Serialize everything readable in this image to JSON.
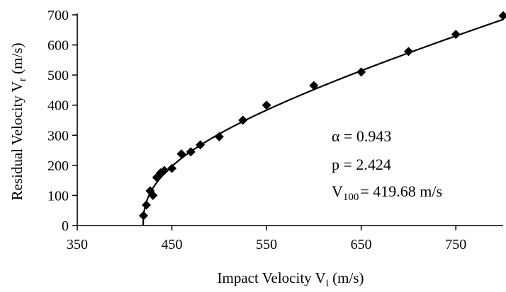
{
  "chart_data": {
    "type": "scatter",
    "title": "",
    "xlabel": {
      "main": "Impact Velocity V",
      "sub": "i",
      "unit": " (m/s)"
    },
    "ylabel": {
      "main": "Residual Velocity V",
      "sub": "r",
      "unit": " (m/s)"
    },
    "xlim": [
      350,
      800
    ],
    "ylim": [
      0,
      700
    ],
    "xticks": [
      350,
      450,
      550,
      650,
      750
    ],
    "yticks": [
      0,
      100,
      200,
      300,
      400,
      500,
      600,
      700
    ],
    "xtick_labels": [
      "350",
      "450",
      "550",
      "650",
      "750"
    ],
    "ytick_labels": [
      "0",
      "100",
      "200",
      "300",
      "400",
      "500",
      "600",
      "700"
    ],
    "grid": false,
    "legend": "none",
    "marker": "diamond",
    "marker_color": "#000000",
    "series": [
      {
        "x": [
          420,
          423,
          427,
          430,
          434,
          438,
          442,
          450,
          460,
          470,
          480,
          500,
          525,
          550,
          600,
          650,
          700,
          750,
          800
        ],
        "y": [
          33,
          68,
          115,
          100,
          160,
          175,
          183,
          190,
          238,
          245,
          268,
          295,
          350,
          400,
          465,
          510,
          578,
          635,
          697
        ]
      }
    ],
    "fit_curve": {
      "alpha": 0.943,
      "p": 2.424,
      "v100": 419.68
    },
    "annotations": {
      "alpha": "α = 0.943",
      "p": "p = 2.424",
      "v100_main": "V",
      "v100_sub": "100",
      "v100_value": "= 419.68 m/s"
    }
  }
}
